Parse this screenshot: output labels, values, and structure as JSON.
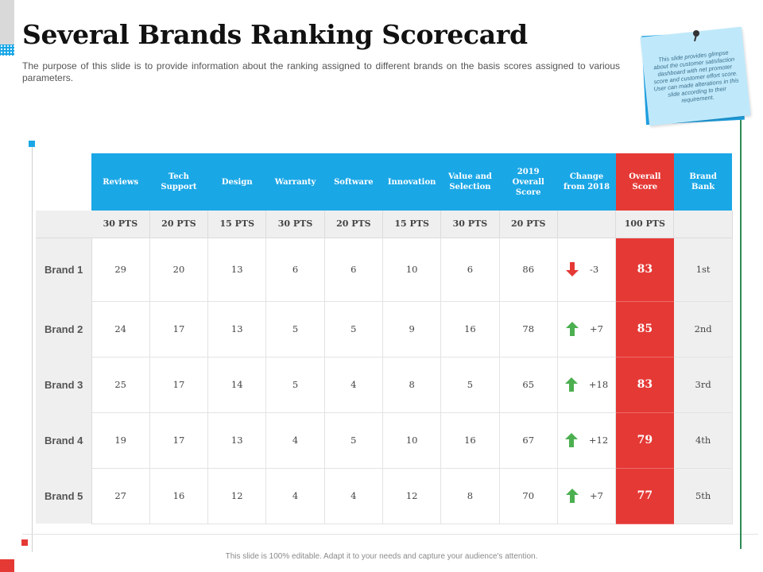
{
  "title": "Several Brands Ranking Scorecard",
  "subtitle": "The purpose of this slide is to provide information about the ranking assigned to different brands on the basis scores assigned to various parameters.",
  "note": "This slide provides glimpse about the customer satisfaction dashboard with net promoter score and customer effort score. User can made alterations in this slide according to their requirement.",
  "footer": "This slide is 100% editable. Adapt it to your needs and capture your audience's attention.",
  "colors": {
    "header_blue": "#1aa7e6",
    "overall_red": "#e53935",
    "up_green": "#4caf50",
    "down_red": "#e53935"
  },
  "table": {
    "headers": [
      "Reviews",
      "Tech Support",
      "Design",
      "Warranty",
      "Software",
      "Innovation",
      "Value and Selection",
      "2019 Overall Score",
      "Change from 2018",
      "Overall Score",
      "Brand Bank"
    ],
    "points": [
      "30 PTS",
      "20 PTS",
      "15 PTS",
      "30 PTS",
      "20 PTS",
      "15 PTS",
      "30 PTS",
      "20 PTS",
      "",
      "100 PTS",
      ""
    ],
    "rows": [
      {
        "brand": "Brand 1",
        "values": [
          "29",
          "20",
          "13",
          "6",
          "6",
          "10",
          "6",
          "86"
        ],
        "change": "-3",
        "direction": "down",
        "overall": "83",
        "rank": "1st"
      },
      {
        "brand": "Brand 2",
        "values": [
          "24",
          "17",
          "13",
          "5",
          "5",
          "9",
          "16",
          "78"
        ],
        "change": "+7",
        "direction": "up",
        "overall": "85",
        "rank": "2nd"
      },
      {
        "brand": "Brand 3",
        "values": [
          "25",
          "17",
          "14",
          "5",
          "4",
          "8",
          "5",
          "65"
        ],
        "change": "+18",
        "direction": "up",
        "overall": "83",
        "rank": "3rd"
      },
      {
        "brand": "Brand 4",
        "values": [
          "19",
          "17",
          "13",
          "4",
          "5",
          "10",
          "16",
          "67"
        ],
        "change": "+12",
        "direction": "up",
        "overall": "79",
        "rank": "4th"
      },
      {
        "brand": "Brand 5",
        "values": [
          "27",
          "16",
          "12",
          "4",
          "4",
          "12",
          "8",
          "70"
        ],
        "change": "+7",
        "direction": "up",
        "overall": "77",
        "rank": "5th"
      }
    ]
  }
}
